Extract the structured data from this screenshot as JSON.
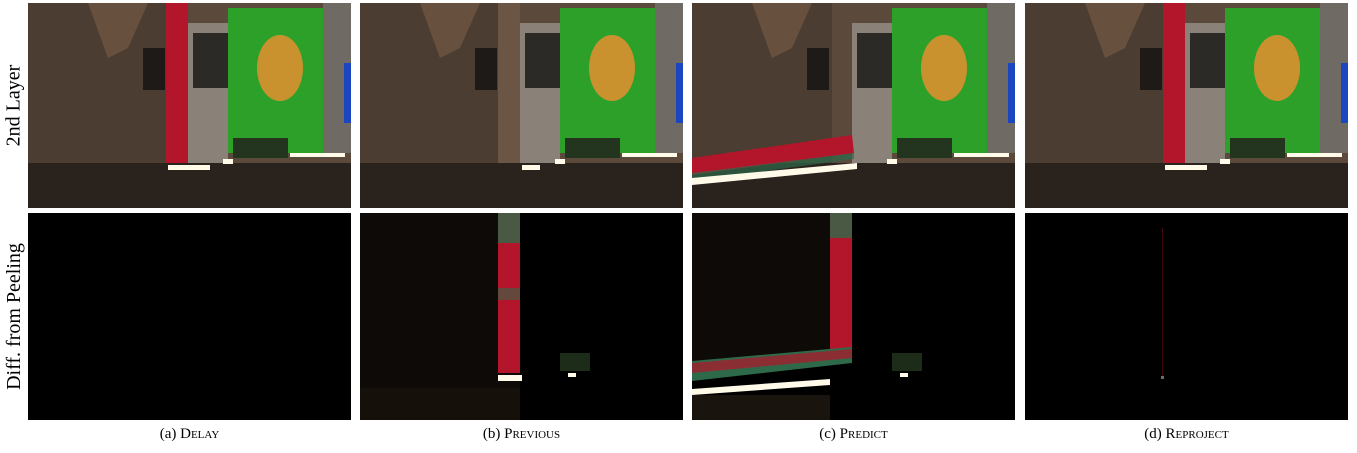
{
  "rows": [
    {
      "label": "2nd Layer"
    },
    {
      "label": "Diff. from Peeling"
    }
  ],
  "columns": [
    {
      "caption_prefix": "(a) ",
      "caption_method": "Delay"
    },
    {
      "caption_prefix": "(b) ",
      "caption_method": "Previous"
    },
    {
      "caption_prefix": "(c) ",
      "caption_method": "Predict"
    },
    {
      "caption_prefix": "(d) ",
      "caption_method": "Reproject"
    }
  ],
  "colors": {
    "wall": "#5b4a3c",
    "floor": "#2a221c",
    "red_curtain": "#b3162b",
    "green_curtain": "#2da02a",
    "emblem": "#c9922f",
    "pillar": "#8a8278",
    "light_strip": "#fffbe8",
    "diff_background": "#000000"
  }
}
